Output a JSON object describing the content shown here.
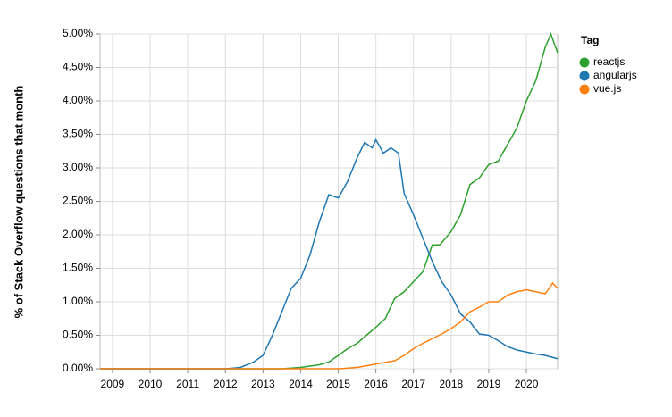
{
  "chart_data": {
    "type": "line",
    "y_label": "% of Stack Overflow questions that month",
    "legend_title": "Tag",
    "legend_position": "right",
    "grid": true,
    "xlim": [
      2008.67,
      2020.83
    ],
    "xticks": [
      2009,
      2010,
      2011,
      2012,
      2013,
      2014,
      2015,
      2016,
      2017,
      2018,
      2019,
      2020
    ],
    "ylim": [
      0,
      5
    ],
    "yticks": [
      {
        "value": 0,
        "label": "0.00%"
      },
      {
        "value": 0.5,
        "label": "0.50%"
      },
      {
        "value": 1,
        "label": "1.00%"
      },
      {
        "value": 1.5,
        "label": "1.50%"
      },
      {
        "value": 2,
        "label": "2.00%"
      },
      {
        "value": 2.5,
        "label": "2.50%"
      },
      {
        "value": 3,
        "label": "3.00%"
      },
      {
        "value": 3.5,
        "label": "3.50%"
      },
      {
        "value": 4,
        "label": "4.00%"
      },
      {
        "value": 4.5,
        "label": "4.50%"
      },
      {
        "value": 5,
        "label": "5.00%"
      }
    ],
    "series": [
      {
        "name": "reactjs",
        "color": "#2ca02c",
        "x": [
          2008.67,
          2013.5,
          2014.0,
          2014.5,
          2014.75,
          2015.0,
          2015.25,
          2015.5,
          2015.75,
          2016.0,
          2016.25,
          2016.5,
          2016.75,
          2017.0,
          2017.25,
          2017.5,
          2017.7,
          2018.0,
          2018.25,
          2018.5,
          2018.75,
          2019.0,
          2019.25,
          2019.5,
          2019.75,
          2020.0,
          2020.25,
          2020.5,
          2020.65,
          2020.83
        ],
        "values": [
          0,
          0,
          0.02,
          0.06,
          0.1,
          0.2,
          0.3,
          0.38,
          0.5,
          0.62,
          0.75,
          1.05,
          1.15,
          1.3,
          1.45,
          1.85,
          1.85,
          2.05,
          2.3,
          2.75,
          2.85,
          3.05,
          3.1,
          3.35,
          3.6,
          4.0,
          4.3,
          4.8,
          5.0,
          4.72
        ]
      },
      {
        "name": "angularjs",
        "color": "#1f77b4",
        "x": [
          2008.67,
          2012.0,
          2012.4,
          2012.75,
          2013.0,
          2013.25,
          2013.5,
          2013.75,
          2014.0,
          2014.25,
          2014.5,
          2014.75,
          2015.0,
          2015.25,
          2015.5,
          2015.7,
          2015.9,
          2016.0,
          2016.2,
          2016.4,
          2016.6,
          2016.75,
          2017.0,
          2017.25,
          2017.5,
          2017.75,
          2018.0,
          2018.25,
          2018.5,
          2018.75,
          2019.0,
          2019.25,
          2019.5,
          2019.75,
          2020.0,
          2020.25,
          2020.5,
          2020.83
        ],
        "values": [
          0,
          0,
          0.02,
          0.1,
          0.2,
          0.5,
          0.85,
          1.2,
          1.35,
          1.7,
          2.2,
          2.6,
          2.55,
          2.8,
          3.15,
          3.38,
          3.3,
          3.42,
          3.22,
          3.3,
          3.22,
          2.62,
          2.3,
          1.95,
          1.6,
          1.3,
          1.1,
          0.82,
          0.7,
          0.52,
          0.5,
          0.42,
          0.33,
          0.28,
          0.25,
          0.22,
          0.2,
          0.15
        ]
      },
      {
        "name": "vue.js",
        "color": "#ff7f0e",
        "x": [
          2008.67,
          2015.0,
          2015.5,
          2016.0,
          2016.5,
          2016.75,
          2017.0,
          2017.25,
          2017.5,
          2017.75,
          2018.0,
          2018.25,
          2018.5,
          2018.75,
          2019.0,
          2019.25,
          2019.5,
          2019.75,
          2020.0,
          2020.25,
          2020.5,
          2020.7,
          2020.83
        ],
        "values": [
          0,
          0,
          0.02,
          0.07,
          0.12,
          0.2,
          0.3,
          0.38,
          0.45,
          0.52,
          0.6,
          0.7,
          0.85,
          0.92,
          1.0,
          1.0,
          1.1,
          1.15,
          1.18,
          1.15,
          1.12,
          1.28,
          1.2
        ]
      }
    ]
  }
}
